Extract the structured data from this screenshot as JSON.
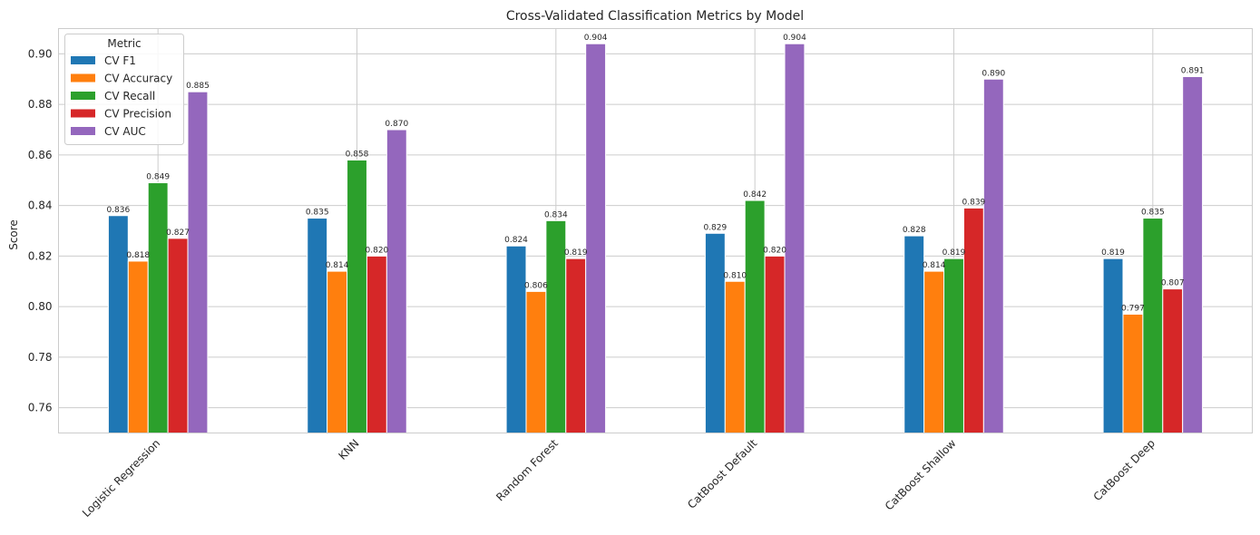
{
  "chart_data": {
    "type": "bar",
    "title": "Cross-Validated Classification Metrics by Model",
    "xlabel": "",
    "ylabel": "Score",
    "ylim": [
      0.75,
      0.91
    ],
    "yticks": [
      0.76,
      0.78,
      0.8,
      0.82,
      0.84,
      0.86,
      0.88,
      0.9
    ],
    "ytick_labels": [
      "0.76",
      "0.78",
      "0.80",
      "0.82",
      "0.84",
      "0.86",
      "0.88",
      "0.90"
    ],
    "grid": true,
    "legend_title": "Metric",
    "legend_position": "top-left",
    "categories": [
      "Logistic Regression",
      "KNN",
      "Random Forest",
      "CatBoost Default",
      "CatBoost Shallow",
      "CatBoost Deep"
    ],
    "series": [
      {
        "name": "CV F1",
        "color": "#1f77b4",
        "values": [
          0.836,
          0.835,
          0.824,
          0.829,
          0.828,
          0.819
        ],
        "labels": [
          "0.836",
          "0.835",
          "0.824",
          "0.829",
          "0.828",
          "0.819"
        ]
      },
      {
        "name": "CV Accuracy",
        "color": "#ff7f0e",
        "values": [
          0.818,
          0.814,
          0.806,
          0.81,
          0.814,
          0.797
        ],
        "labels": [
          "0.818",
          "0.814",
          "0.806",
          "0.810",
          "0.814",
          "0.797"
        ]
      },
      {
        "name": "CV Recall",
        "color": "#2ca02c",
        "values": [
          0.849,
          0.858,
          0.834,
          0.842,
          0.819,
          0.835
        ],
        "labels": [
          "0.849",
          "0.858",
          "0.834",
          "0.842",
          "0.819",
          "0.835"
        ]
      },
      {
        "name": "CV Precision",
        "color": "#d62728",
        "values": [
          0.827,
          0.82,
          0.819,
          0.82,
          0.839,
          0.807
        ],
        "labels": [
          "0.827",
          "0.820",
          "0.819",
          "0.820",
          "0.839",
          "0.807"
        ]
      },
      {
        "name": "CV AUC",
        "color": "#9467bd",
        "values": [
          0.885,
          0.87,
          0.904,
          0.904,
          0.89,
          0.891
        ],
        "labels": [
          "0.885",
          "0.870",
          "0.904",
          "0.904",
          "0.890",
          "0.891"
        ]
      }
    ]
  }
}
